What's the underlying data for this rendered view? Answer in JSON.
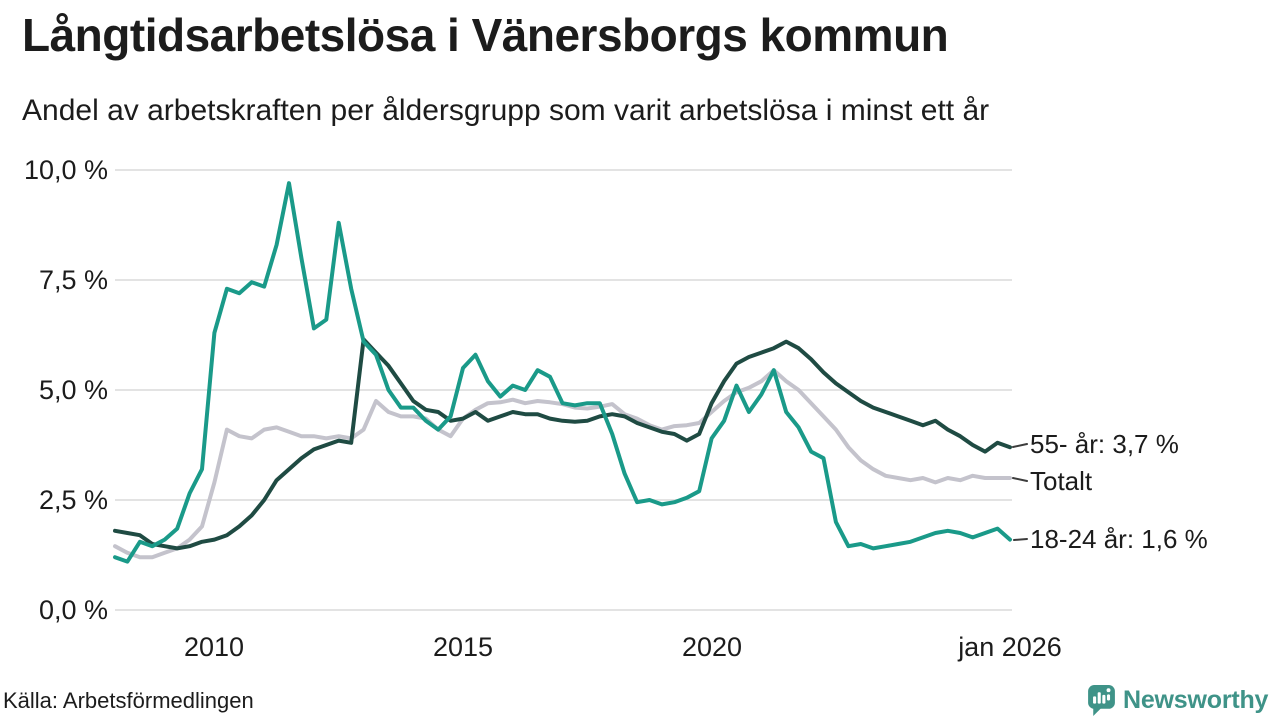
{
  "header": {
    "title": "Långtidsarbetslösa i Vänersborgs kommun",
    "subtitle": "Andel av arbetskraften per åldersgrupp som varit arbetslösa i minst ett år"
  },
  "footer": {
    "source": "Källa: Arbetsförmedlingen",
    "brand": "Newsworthy",
    "brand_color": "#3F9388"
  },
  "colors": {
    "grid": "#e3e3e3",
    "text": "#1c1c1c",
    "series_55_plus": "#1F4B43",
    "series_total": "#C4C3CC",
    "series_18_24": "#1A9A89"
  },
  "chart_data": {
    "type": "line",
    "title": "Långtidsarbetslösa i Vänersborgs kommun",
    "subtitle": "Andel av arbetskraften per åldersgrupp som varit arbetslösa i minst ett år",
    "source": "Källa: Arbetsförmedlingen",
    "y_unit": "%",
    "ylim": [
      0,
      10
    ],
    "xlim": [
      2008,
      2026
    ],
    "grid": "horizontal",
    "legend_position": "right-end-labels",
    "y_ticks": [
      {
        "value": 0,
        "label": "0,0 %"
      },
      {
        "value": 2.5,
        "label": "2,5 %"
      },
      {
        "value": 5,
        "label": "5,0 %"
      },
      {
        "value": 7.5,
        "label": "7,5 %"
      },
      {
        "value": 10,
        "label": "10,0 %"
      }
    ],
    "x_ticks": [
      {
        "value": 2010,
        "label": "2010"
      },
      {
        "value": 2015,
        "label": "2015"
      },
      {
        "value": 2020,
        "label": "2020"
      },
      {
        "value": 2026,
        "label": "jan 2026"
      }
    ],
    "x": [
      2008,
      2008.25,
      2008.5,
      2008.75,
      2009,
      2009.25,
      2009.5,
      2009.75,
      2010,
      2010.25,
      2010.5,
      2010.75,
      2011,
      2011.25,
      2011.5,
      2011.75,
      2012,
      2012.25,
      2012.5,
      2012.75,
      2013,
      2013.25,
      2013.5,
      2013.75,
      2014,
      2014.25,
      2014.5,
      2014.75,
      2015,
      2015.25,
      2015.5,
      2015.75,
      2016,
      2016.25,
      2016.5,
      2016.75,
      2017,
      2017.25,
      2017.5,
      2017.75,
      2018,
      2018.25,
      2018.5,
      2018.75,
      2019,
      2019.25,
      2019.5,
      2019.75,
      2020,
      2020.25,
      2020.5,
      2020.75,
      2021,
      2021.25,
      2021.5,
      2021.75,
      2022,
      2022.25,
      2022.5,
      2022.75,
      2023,
      2023.25,
      2023.5,
      2023.75,
      2024,
      2024.25,
      2024.5,
      2024.75,
      2025,
      2025.25,
      2025.5,
      2025.75,
      2026
    ],
    "series": [
      {
        "id": "total",
        "name": "Totalt",
        "end_label": "Totalt",
        "end_value": 3.0,
        "color": "#C4C3CC",
        "values": [
          1.45,
          1.3,
          1.2,
          1.2,
          1.3,
          1.4,
          1.6,
          1.9,
          2.9,
          4.1,
          3.95,
          3.9,
          4.1,
          4.15,
          4.05,
          3.95,
          3.95,
          3.9,
          3.95,
          3.9,
          4.1,
          4.75,
          4.5,
          4.4,
          4.4,
          4.35,
          4.1,
          3.95,
          4.35,
          4.55,
          4.7,
          4.72,
          4.78,
          4.7,
          4.75,
          4.72,
          4.68,
          4.6,
          4.58,
          4.62,
          4.68,
          4.45,
          4.35,
          4.2,
          4.1,
          4.18,
          4.2,
          4.25,
          4.5,
          4.75,
          4.95,
          5.05,
          5.2,
          5.45,
          5.2,
          5.0,
          4.7,
          4.4,
          4.1,
          3.7,
          3.4,
          3.2,
          3.05,
          3.0,
          2.95,
          3.0,
          2.9,
          3.0,
          2.95,
          3.05,
          3.0,
          3.0,
          3.0
        ]
      },
      {
        "id": "age-55-plus",
        "name": "55- år",
        "end_label": "55- år: 3,7 %",
        "end_value": 3.7,
        "color": "#1F4B43",
        "values": [
          1.8,
          1.75,
          1.7,
          1.5,
          1.45,
          1.4,
          1.45,
          1.55,
          1.6,
          1.7,
          1.9,
          2.15,
          2.5,
          2.95,
          3.2,
          3.45,
          3.65,
          3.75,
          3.85,
          3.8,
          6.15,
          5.85,
          5.55,
          5.15,
          4.75,
          4.55,
          4.5,
          4.3,
          4.35,
          4.5,
          4.3,
          4.4,
          4.5,
          4.45,
          4.45,
          4.35,
          4.3,
          4.28,
          4.3,
          4.4,
          4.45,
          4.4,
          4.25,
          4.15,
          4.05,
          4.0,
          3.85,
          4.0,
          4.7,
          5.2,
          5.6,
          5.75,
          5.85,
          5.95,
          6.1,
          5.95,
          5.7,
          5.4,
          5.15,
          4.95,
          4.75,
          4.6,
          4.5,
          4.4,
          4.3,
          4.2,
          4.3,
          4.1,
          3.95,
          3.75,
          3.6,
          3.8,
          3.7
        ]
      },
      {
        "id": "age-18-24",
        "name": "18-24 år",
        "end_label": "18-24 år: 1,6 %",
        "end_value": 1.6,
        "color": "#1A9A89",
        "values": [
          1.2,
          1.1,
          1.55,
          1.45,
          1.6,
          1.85,
          2.65,
          3.2,
          6.3,
          7.3,
          7.2,
          7.45,
          7.35,
          8.3,
          9.7,
          8.0,
          6.4,
          6.6,
          8.8,
          7.3,
          6.1,
          5.8,
          5.0,
          4.6,
          4.6,
          4.3,
          4.1,
          4.4,
          5.5,
          5.8,
          5.2,
          4.85,
          5.1,
          5.0,
          5.45,
          5.3,
          4.7,
          4.65,
          4.7,
          4.7,
          4.0,
          3.1,
          2.45,
          2.5,
          2.4,
          2.45,
          2.55,
          2.7,
          3.9,
          4.3,
          5.1,
          4.5,
          4.9,
          5.45,
          4.5,
          4.15,
          3.6,
          3.45,
          2.0,
          1.45,
          1.5,
          1.4,
          1.45,
          1.5,
          1.55,
          1.65,
          1.75,
          1.8,
          1.75,
          1.65,
          1.75,
          1.85,
          1.6
        ]
      }
    ]
  }
}
